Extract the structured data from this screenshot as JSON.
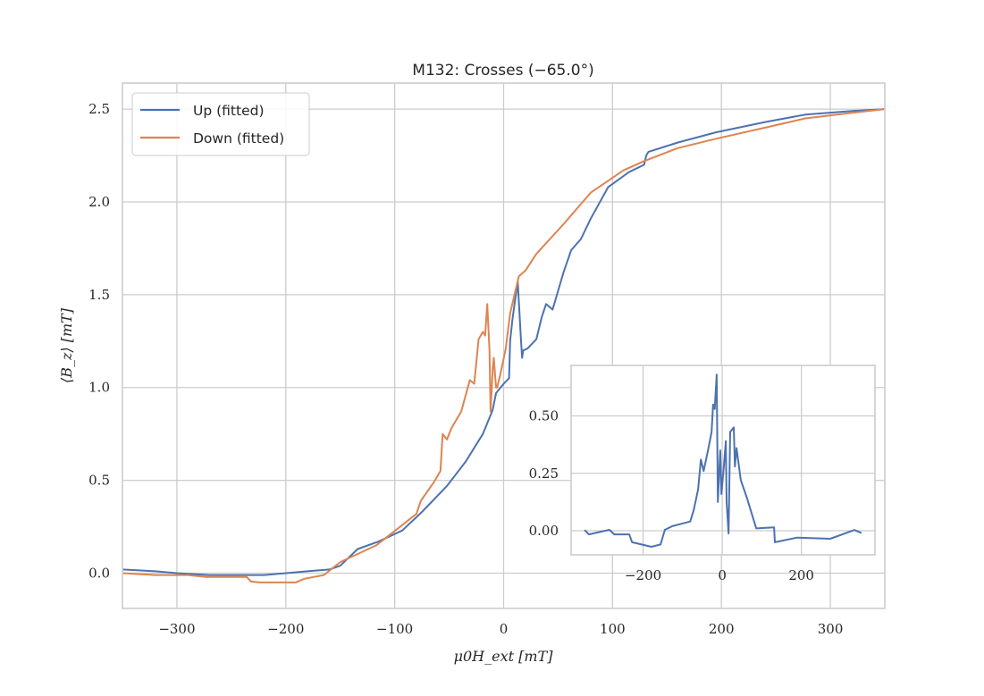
{
  "chart_data": [
    {
      "type": "line",
      "title": "M132: Crosses (−65.0°)",
      "xlabel": "μ0H_ext [mT]",
      "ylabel": "⟨B_z⟩ [mT]",
      "xlim": [
        -350,
        350
      ],
      "ylim": [
        -0.19,
        2.64
      ],
      "xticks": [
        -300,
        -200,
        -100,
        0,
        100,
        200,
        300
      ],
      "xtick_labels": [
        "−300",
        "−200",
        "−100",
        "0",
        "100",
        "200",
        "300"
      ],
      "yticks": [
        0.0,
        0.5,
        1.0,
        1.5,
        2.0,
        2.5
      ],
      "ytick_labels": [
        "0.0",
        "0.5",
        "1.0",
        "1.5",
        "2.0",
        "2.5"
      ],
      "grid": true,
      "legend": "top-left",
      "series": [
        {
          "name": "Up (fitted)",
          "color": "#4C72B0",
          "x": [
            -350,
            -320,
            -300,
            -270,
            -250,
            -220,
            -200,
            -180,
            -160,
            -150,
            -134,
            -115,
            -93,
            -75,
            -52,
            -35,
            -19,
            -10,
            -7,
            0,
            5,
            6,
            8,
            10,
            13,
            16,
            17,
            18,
            22,
            30,
            35,
            39,
            45,
            55,
            62,
            71,
            80,
            96,
            115,
            129,
            131,
            133,
            160,
            195,
            240,
            277,
            320,
            350
          ],
          "y": [
            0.02,
            0.01,
            0.0,
            -0.01,
            -0.01,
            -0.01,
            0.0,
            0.01,
            0.02,
            0.04,
            0.13,
            0.17,
            0.23,
            0.33,
            0.47,
            0.6,
            0.75,
            0.88,
            0.97,
            1.02,
            1.05,
            1.25,
            1.36,
            1.45,
            1.57,
            1.25,
            1.16,
            1.2,
            1.21,
            1.26,
            1.38,
            1.45,
            1.42,
            1.62,
            1.74,
            1.8,
            1.91,
            2.08,
            2.16,
            2.2,
            2.25,
            2.27,
            2.32,
            2.375,
            2.43,
            2.47,
            2.49,
            2.5
          ]
        },
        {
          "name": "Down (fitted)",
          "color": "#DD8452",
          "x": [
            -350,
            -320,
            -290,
            -273,
            -250,
            -236,
            -232,
            -224,
            -200,
            -191,
            -183,
            -165,
            -150,
            -117,
            -95,
            -80,
            -76,
            -70,
            -64,
            -58,
            -56,
            -52,
            -48,
            -44,
            -39,
            -31,
            -27,
            -23,
            -19,
            -17,
            -15,
            -13,
            -12,
            -10,
            -9,
            -7,
            -6,
            -3,
            2,
            6,
            10,
            14,
            20,
            30,
            55,
            80,
            110,
            129,
            160,
            195,
            240,
            277,
            320,
            350
          ],
          "y": [
            0.0,
            -0.01,
            -0.01,
            -0.02,
            -0.02,
            -0.02,
            -0.045,
            -0.05,
            -0.05,
            -0.05,
            -0.03,
            -0.01,
            0.06,
            0.15,
            0.25,
            0.32,
            0.39,
            0.44,
            0.49,
            0.55,
            0.75,
            0.72,
            0.78,
            0.82,
            0.87,
            1.04,
            1.02,
            1.26,
            1.3,
            1.28,
            1.45,
            1.2,
            0.87,
            1.1,
            1.16,
            1.0,
            1.0,
            1.07,
            1.21,
            1.4,
            1.5,
            1.6,
            1.63,
            1.72,
            1.88,
            2.05,
            2.17,
            2.22,
            2.29,
            2.34,
            2.4,
            2.45,
            2.48,
            2.5
          ]
        }
      ]
    },
    {
      "type": "line",
      "title": "",
      "xlim": [
        -382,
        386
      ],
      "ylim": [
        -0.105,
        0.72
      ],
      "xticks": [
        -200,
        0,
        200
      ],
      "xtick_labels": [
        "−200",
        "0",
        "200"
      ],
      "yticks": [
        0.0,
        0.25,
        0.5
      ],
      "ytick_labels": [
        "0.00",
        "0.25",
        "0.50"
      ],
      "grid": true,
      "series": [
        {
          "color": "#4C72B0",
          "x": [
            -348,
            -337,
            -285,
            -273,
            -235,
            -228,
            -179,
            -156,
            -145,
            -126,
            -81,
            -72,
            -61,
            -54,
            -47,
            -36,
            -27,
            -23,
            -19,
            -14,
            -11,
            -5,
            -2,
            4,
            9,
            11,
            16,
            20,
            29,
            32,
            36,
            47,
            63,
            70,
            86,
            131,
            133,
            190,
            273,
            334,
            352
          ],
          "y": [
            0.003,
            -0.016,
            0.004,
            -0.016,
            -0.016,
            -0.05,
            -0.07,
            -0.06,
            0.004,
            0.02,
            0.04,
            0.09,
            0.18,
            0.31,
            0.26,
            0.35,
            0.43,
            0.55,
            0.53,
            0.68,
            0.125,
            0.35,
            0.16,
            0.28,
            0.39,
            0.125,
            -0.012,
            0.43,
            0.45,
            0.28,
            0.36,
            0.22,
            0.14,
            0.1,
            0.01,
            0.015,
            -0.05,
            -0.03,
            -0.035,
            0.003,
            -0.01
          ]
        }
      ]
    }
  ]
}
